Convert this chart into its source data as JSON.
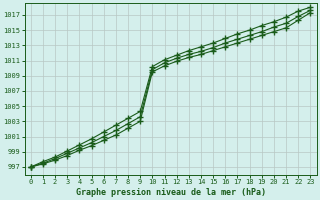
{
  "title": "Graphe pression niveau de la mer (hPa)",
  "xlim": [
    -0.5,
    23.5
  ],
  "ylim": [
    996.0,
    1018.5
  ],
  "yticks": [
    997,
    999,
    1001,
    1003,
    1005,
    1007,
    1009,
    1011,
    1013,
    1015,
    1017
  ],
  "xticks": [
    0,
    1,
    2,
    3,
    4,
    5,
    6,
    7,
    8,
    9,
    10,
    11,
    12,
    13,
    14,
    15,
    16,
    17,
    18,
    19,
    20,
    21,
    22,
    23
  ],
  "bg_color": "#d4efec",
  "grid_color": "#b8c8c4",
  "line_color": "#1a5c1a",
  "figsize": [
    3.2,
    2.0
  ],
  "dpi": 100,
  "hours": [
    0,
    1,
    2,
    3,
    4,
    5,
    6,
    7,
    8,
    9,
    10,
    11,
    12,
    13,
    14,
    15,
    16,
    17,
    18,
    19,
    20,
    21,
    22,
    23
  ],
  "line_low": [
    997.0,
    997.4,
    997.9,
    998.5,
    999.2,
    999.8,
    1000.5,
    1001.2,
    1002.1,
    1003.0,
    1009.5,
    1010.3,
    1010.9,
    1011.4,
    1011.8,
    1012.3,
    1012.8,
    1013.3,
    1013.8,
    1014.3,
    1014.8,
    1015.3,
    1016.3,
    1017.3
  ],
  "line_mid": [
    997.0,
    997.5,
    998.1,
    998.8,
    999.5,
    1000.2,
    1001.0,
    1001.8,
    1002.7,
    1003.6,
    1009.8,
    1010.7,
    1011.3,
    1011.8,
    1012.2,
    1012.7,
    1013.3,
    1013.8,
    1014.3,
    1014.8,
    1015.4,
    1015.9,
    1016.8,
    1017.6
  ],
  "line_high": [
    997.0,
    997.7,
    998.3,
    999.1,
    999.9,
    1000.7,
    1001.6,
    1002.5,
    1003.4,
    1004.3,
    1010.2,
    1011.1,
    1011.7,
    1012.3,
    1012.8,
    1013.3,
    1013.9,
    1014.5,
    1015.0,
    1015.6,
    1016.1,
    1016.7,
    1017.5,
    1018.0
  ]
}
